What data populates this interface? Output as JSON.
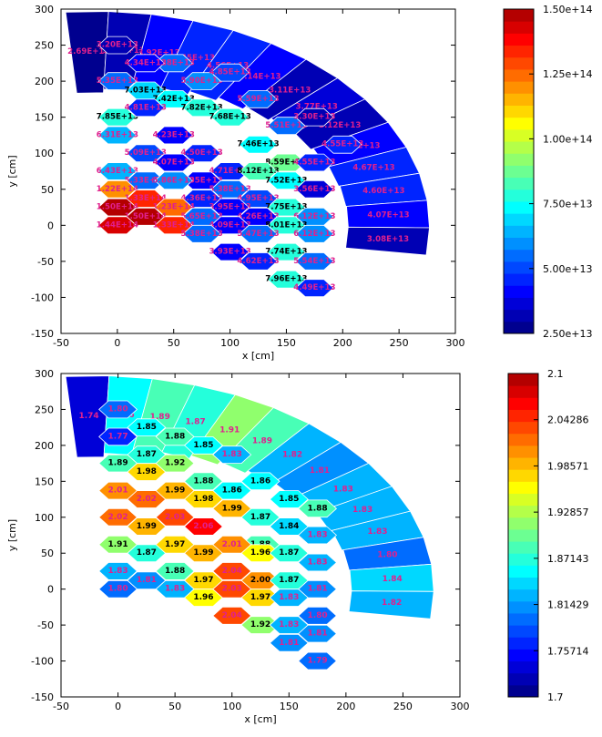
{
  "chart_data": [
    {
      "type": "heatmap",
      "title": "",
      "xlabel": "x [cm]",
      "ylabel": "y [cm]",
      "xlim": [
        -50,
        300
      ],
      "ylim": [
        -150,
        300
      ],
      "xticks": [
        "-50",
        "0",
        "50",
        "100",
        "150",
        "200",
        "250",
        "300"
      ],
      "yticks": [
        "300",
        "250",
        "200",
        "150",
        "100",
        "50",
        "0",
        "-50",
        "-100",
        "-150"
      ],
      "colorbar": {
        "min": 25000000000000.0,
        "max": 150000000000000.0,
        "ticks": [
          "1.50e+14",
          "1.25e+14",
          "1.00e+14",
          "7.50e+13",
          "5.00e+13",
          "2.50e+13"
        ]
      },
      "hex_cells": [
        {
          "x": 0,
          "y": 250,
          "v": "3.20E+13"
        },
        {
          "x": 50,
          "y": 225,
          "v": "5.28E+13"
        },
        {
          "x": 0,
          "y": 200,
          "v": "5.35E+13"
        },
        {
          "x": 25,
          "y": 225,
          "v": "4.34E+13"
        },
        {
          "x": 25,
          "y": 187,
          "v": "7.03E+13"
        },
        {
          "x": 50,
          "y": 175,
          "v": "7.42E+13"
        },
        {
          "x": 0,
          "y": 150,
          "v": "7.85E+13"
        },
        {
          "x": 75,
          "y": 200,
          "v": "5.90E+13"
        },
        {
          "x": 100,
          "y": 212,
          "v": "4.85E+13"
        },
        {
          "x": 125,
          "y": 175,
          "v": "5.59E+13"
        },
        {
          "x": 25,
          "y": 163,
          "v": "4.81E+13"
        },
        {
          "x": 75,
          "y": 163,
          "v": "7.82E+13"
        },
        {
          "x": 100,
          "y": 150,
          "v": "7.68E+13"
        },
        {
          "x": 0,
          "y": 125,
          "v": "6.31E+13"
        },
        {
          "x": 50,
          "y": 125,
          "v": "4.23E+13"
        },
        {
          "x": 25,
          "y": 100,
          "v": "5.09E+13"
        },
        {
          "x": 75,
          "y": 100,
          "v": "4.50E+13"
        },
        {
          "x": 150,
          "y": 138,
          "v": "5.51E+13"
        },
        {
          "x": 125,
          "y": 112,
          "v": "7.46E+13"
        },
        {
          "x": 200,
          "y": 112,
          "v": "4.55E+13"
        },
        {
          "x": 175,
          "y": 150,
          "v": "3.30E+13"
        },
        {
          "x": 0,
          "y": 75,
          "v": "6.43E+13"
        },
        {
          "x": 50,
          "y": 87,
          "v": "4.07E+13"
        },
        {
          "x": 100,
          "y": 75,
          "v": "4.71E+13"
        },
        {
          "x": 150,
          "y": 87,
          "v": "8.59E+13"
        },
        {
          "x": 25,
          "y": 62,
          "v": "5.33E+13"
        },
        {
          "x": 75,
          "y": 62,
          "v": "3.95E+13"
        },
        {
          "x": 125,
          "y": 75,
          "v": "8.12E+13"
        },
        {
          "x": 175,
          "y": 87,
          "v": "4.55E+13"
        },
        {
          "x": 0,
          "y": 50,
          "v": "1.22E+14"
        },
        {
          "x": 50,
          "y": 62,
          "v": "5.86E+13"
        },
        {
          "x": 100,
          "y": 50,
          "v": "5.38E+13"
        },
        {
          "x": 150,
          "y": 62,
          "v": "7.52E+13"
        },
        {
          "x": 25,
          "y": 37,
          "v": "1.33E+14"
        },
        {
          "x": 75,
          "y": 37,
          "v": "4.36E+13"
        },
        {
          "x": 125,
          "y": 37,
          "v": "4.95E+13"
        },
        {
          "x": 175,
          "y": 50,
          "v": "3.56E+13"
        },
        {
          "x": 0,
          "y": 25,
          "v": "1.50E+14"
        },
        {
          "x": 50,
          "y": 25,
          "v": "1.23E+14"
        },
        {
          "x": 100,
          "y": 25,
          "v": "3.95E+13"
        },
        {
          "x": 150,
          "y": 25,
          "v": "7.75E+13"
        },
        {
          "x": 25,
          "y": 12,
          "v": "1.50E+14"
        },
        {
          "x": 75,
          "y": 12,
          "v": "5.65E+13"
        },
        {
          "x": 125,
          "y": 12,
          "v": "4.26E+13"
        },
        {
          "x": 175,
          "y": 12,
          "v": "6.12E+13"
        },
        {
          "x": 0,
          "y": 0,
          "v": "1.44E+14"
        },
        {
          "x": 50,
          "y": 0,
          "v": "1.33E+14"
        },
        {
          "x": 100,
          "y": 0,
          "v": "4.09E+13"
        },
        {
          "x": 150,
          "y": 0,
          "v": "8.01E+13"
        },
        {
          "x": 75,
          "y": -12,
          "v": "5.38E+13"
        },
        {
          "x": 125,
          "y": -12,
          "v": "5.47E+13"
        },
        {
          "x": 175,
          "y": -12,
          "v": "6.12E+13"
        },
        {
          "x": 100,
          "y": -37,
          "v": "3.93E+13"
        },
        {
          "x": 150,
          "y": -37,
          "v": "7.74E+13"
        },
        {
          "x": 125,
          "y": -50,
          "v": "4.62E+13"
        },
        {
          "x": 175,
          "y": -50,
          "v": "5.54E+13"
        },
        {
          "x": 150,
          "y": -75,
          "v": "7.96E+13"
        },
        {
          "x": 175,
          "y": -87,
          "v": "4.49E+13"
        }
      ],
      "outer_cells": [
        {
          "v": "2.69E+13",
          "vv": 26900000000000.0
        },
        {
          "v": "3.00E+13",
          "vv": 30000000000000.0
        },
        {
          "v": "3.92E+13",
          "vv": 39200000000000.0
        },
        {
          "v": "4.45E+13",
          "vv": 44500000000000.0
        },
        {
          "v": "4.56E+13",
          "vv": 45600000000000.0
        },
        {
          "v": "4.14E+13",
          "vv": 41400000000000.0
        },
        {
          "v": "3.11E+13",
          "vv": 31100000000000.0
        },
        {
          "v": "3.77E+13",
          "vv": 37700000000000.0
        },
        {
          "v": "3.12E+13",
          "vv": 31200000000000.0
        },
        {
          "v": "4.05E+13",
          "vv": 40500000000000.0
        },
        {
          "v": "4.67E+13",
          "vv": 46700000000000.0
        },
        {
          "v": "4.60E+13",
          "vv": 46000000000000.0
        },
        {
          "v": "4.07E+13",
          "vv": 40700000000000.0
        },
        {
          "v": "3.08E+13",
          "vv": 30800000000000.0
        }
      ]
    },
    {
      "type": "heatmap",
      "title": "",
      "xlabel": "x [cm]",
      "ylabel": "y [cm]",
      "xlim": [
        -50,
        300
      ],
      "ylim": [
        -150,
        300
      ],
      "xticks": [
        "-50",
        "0",
        "50",
        "100",
        "150",
        "200",
        "250",
        "300"
      ],
      "yticks": [
        "300",
        "250",
        "200",
        "150",
        "100",
        "50",
        "0",
        "-50",
        "-100",
        "-150"
      ],
      "colorbar": {
        "min": 1.7,
        "max": 2.1,
        "ticks": [
          "2.1",
          "2.04286",
          "1.98571",
          "1.92857",
          "1.87143",
          "1.81429",
          "1.75714",
          "1.7"
        ]
      },
      "hex_cells": [
        {
          "x": 0,
          "y": 250,
          "v": "1.80"
        },
        {
          "x": 0,
          "y": 212,
          "v": "1.77"
        },
        {
          "x": 25,
          "y": 225,
          "v": "1.85"
        },
        {
          "x": 50,
          "y": 212,
          "v": "1.88"
        },
        {
          "x": 25,
          "y": 187,
          "v": "1.87"
        },
        {
          "x": 75,
          "y": 200,
          "v": "1.85"
        },
        {
          "x": 100,
          "y": 187,
          "v": "1.83"
        },
        {
          "x": 0,
          "y": 175,
          "v": "1.89"
        },
        {
          "x": 25,
          "y": 163,
          "v": "1.98"
        },
        {
          "x": 50,
          "y": 175,
          "v": "1.92"
        },
        {
          "x": 75,
          "y": 150,
          "v": "1.88"
        },
        {
          "x": 125,
          "y": 150,
          "v": "1.86"
        },
        {
          "x": 100,
          "y": 137,
          "v": "1.86"
        },
        {
          "x": 0,
          "y": 137,
          "v": "2.01"
        },
        {
          "x": 25,
          "y": 125,
          "v": "2.02"
        },
        {
          "x": 50,
          "y": 137,
          "v": "1.99"
        },
        {
          "x": 75,
          "y": 125,
          "v": "1.98"
        },
        {
          "x": 100,
          "y": 112,
          "v": "1.99"
        },
        {
          "x": 125,
          "y": 100,
          "v": "1.87"
        },
        {
          "x": 150,
          "y": 125,
          "v": "1.85"
        },
        {
          "x": 175,
          "y": 112,
          "v": "1.88"
        },
        {
          "x": 0,
          "y": 100,
          "v": "2.02"
        },
        {
          "x": 25,
          "y": 87,
          "v": "1.99"
        },
        {
          "x": 50,
          "y": 100,
          "v": "2.03"
        },
        {
          "x": 75,
          "y": 87,
          "v": "2.06"
        },
        {
          "x": 125,
          "y": 62,
          "v": "1.88"
        },
        {
          "x": 150,
          "y": 87,
          "v": "1.84"
        },
        {
          "x": 175,
          "y": 75,
          "v": "1.83"
        },
        {
          "x": 0,
          "y": 62,
          "v": "1.91"
        },
        {
          "x": 25,
          "y": 50,
          "v": "1.87"
        },
        {
          "x": 50,
          "y": 62,
          "v": "1.97"
        },
        {
          "x": 75,
          "y": 50,
          "v": "1.99"
        },
        {
          "x": 100,
          "y": 62,
          "v": "2.01"
        },
        {
          "x": 125,
          "y": 50,
          "v": "1.96"
        },
        {
          "x": 150,
          "y": 50,
          "v": "1.87"
        },
        {
          "x": 175,
          "y": 37,
          "v": "1.83"
        },
        {
          "x": 0,
          "y": 25,
          "v": "1.83"
        },
        {
          "x": 25,
          "y": 12,
          "v": "1.81"
        },
        {
          "x": 50,
          "y": 25,
          "v": "1.88"
        },
        {
          "x": 75,
          "y": 12,
          "v": "1.97"
        },
        {
          "x": 100,
          "y": 25,
          "v": "2.04"
        },
        {
          "x": 125,
          "y": 12,
          "v": "2.00"
        },
        {
          "x": 150,
          "y": 12,
          "v": "1.87"
        },
        {
          "x": 175,
          "y": 0,
          "v": "1.81"
        },
        {
          "x": 0,
          "y": 0,
          "v": "1.80"
        },
        {
          "x": 50,
          "y": 0,
          "v": "1.83"
        },
        {
          "x": 75,
          "y": -12,
          "v": "1.96"
        },
        {
          "x": 100,
          "y": 0,
          "v": "2.03"
        },
        {
          "x": 125,
          "y": -12,
          "v": "1.97"
        },
        {
          "x": 150,
          "y": -12,
          "v": "1.83"
        },
        {
          "x": 175,
          "y": -37,
          "v": "1.80"
        },
        {
          "x": 100,
          "y": -37,
          "v": "2.04"
        },
        {
          "x": 125,
          "y": -50,
          "v": "1.92"
        },
        {
          "x": 150,
          "y": -50,
          "v": "1.83"
        },
        {
          "x": 175,
          "y": -62,
          "v": "1.81"
        },
        {
          "x": 150,
          "y": -75,
          "v": "1.81"
        },
        {
          "x": 175,
          "y": -100,
          "v": "1.79"
        }
      ],
      "outer_cells": [
        {
          "v": "1.74",
          "vv": 1.74
        },
        {
          "v": "1.86",
          "vv": 1.86
        },
        {
          "v": "1.89",
          "vv": 1.89
        },
        {
          "v": "1.87",
          "vv": 1.87
        },
        {
          "v": "1.91",
          "vv": 1.91
        },
        {
          "v": "1.89",
          "vv": 1.89
        },
        {
          "v": "1.82",
          "vv": 1.82
        },
        {
          "v": "1.81",
          "vv": 1.81
        },
        {
          "v": "1.83",
          "vv": 1.83
        },
        {
          "v": "1.83",
          "vv": 1.83
        },
        {
          "v": "1.83",
          "vv": 1.83
        },
        {
          "v": "1.80",
          "vv": 1.8
        },
        {
          "v": "1.84",
          "vv": 1.84
        },
        {
          "v": "1.82",
          "vv": 1.82
        }
      ]
    }
  ]
}
